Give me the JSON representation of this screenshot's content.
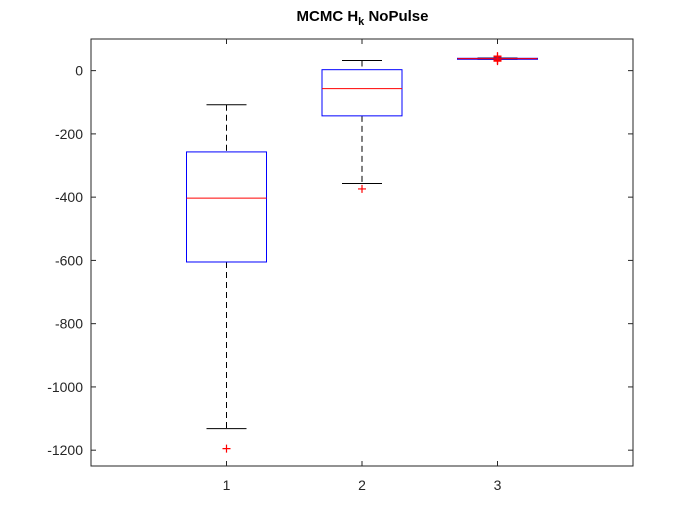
{
  "chart_data": {
    "type": "box",
    "title": {
      "main": "MCMC H",
      "subscript": "k",
      "suffix": " NoPulse"
    },
    "xlabel": "",
    "ylabel": "",
    "categories": [
      "1",
      "2",
      "3"
    ],
    "ylim": [
      -1250,
      100
    ],
    "yticks": [
      0,
      -200,
      -400,
      -600,
      -800,
      -1000,
      -1200
    ],
    "grid": false,
    "colors": {
      "box": "#0000ff",
      "median": "#ff0000",
      "whisker": "#000000",
      "outlier": "#ff0000",
      "axis": "#262626"
    },
    "boxes": [
      {
        "category": "1",
        "whisker_low": -1132,
        "q1": -605,
        "median": -403,
        "q3": -257,
        "whisker_high": -108,
        "outliers": [
          -1195
        ]
      },
      {
        "category": "2",
        "whisker_low": -357,
        "q1": -143,
        "median": -57,
        "q3": 3,
        "whisker_high": 32,
        "outliers": [
          -374
        ]
      },
      {
        "category": "3",
        "whisker_low": 36,
        "q1": 37,
        "median": 38,
        "q3": 39,
        "whisker_high": 40,
        "outliers": [
          30,
          32,
          34,
          44,
          46
        ]
      }
    ]
  }
}
